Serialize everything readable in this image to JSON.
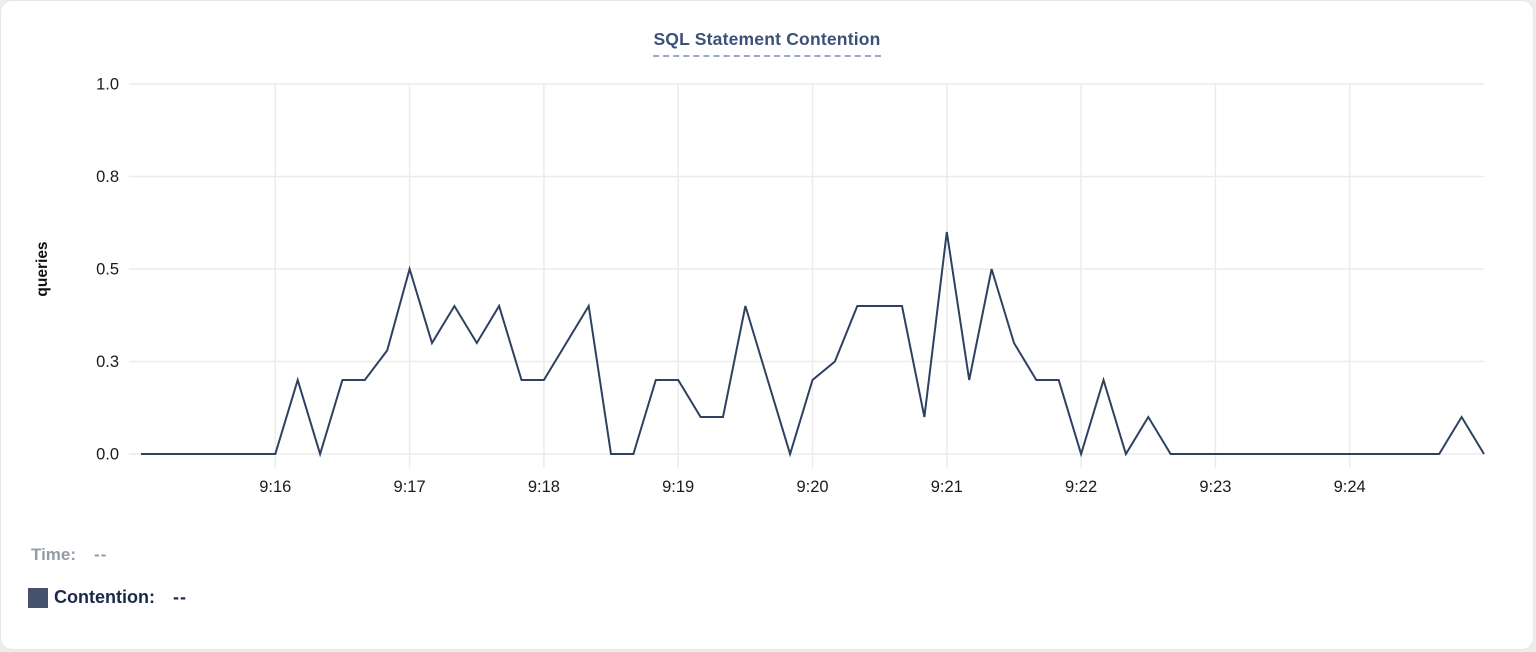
{
  "header": {
    "title": "SQL Statement Contention"
  },
  "tooltip_panel": {
    "time_label": "Time:",
    "time_value": "--",
    "series_label": "Contention:",
    "series_value": "--"
  },
  "colors": {
    "line": "#2e4161",
    "legend_swatch": "#46526b",
    "title": "#3c517a",
    "title_underline": "#9aa6d4",
    "grid": "#ececec",
    "axis_text": "#1b1b1b"
  },
  "chart_data": {
    "type": "line",
    "title": "SQL Statement Contention",
    "xlabel": "",
    "ylabel": "queries",
    "x_start_time": "9:15",
    "x_end_time": "9:25",
    "ylim": [
      0,
      1
    ],
    "grid": true,
    "legend_position": "bottom-left",
    "y_ticks": [
      {
        "v": 0.0,
        "label": "0.0"
      },
      {
        "v": 0.25,
        "label": "0.3"
      },
      {
        "v": 0.5,
        "label": "0.5"
      },
      {
        "v": 0.75,
        "label": "0.8"
      },
      {
        "v": 1.0,
        "label": "1.0"
      }
    ],
    "x_ticks": [
      {
        "t": 60,
        "label": "9:16"
      },
      {
        "t": 120,
        "label": "9:17"
      },
      {
        "t": 180,
        "label": "9:18"
      },
      {
        "t": 240,
        "label": "9:19"
      },
      {
        "t": 300,
        "label": "9:20"
      },
      {
        "t": 360,
        "label": "9:21"
      },
      {
        "t": 420,
        "label": "9:22"
      },
      {
        "t": 480,
        "label": "9:23"
      },
      {
        "t": 540,
        "label": "9:24"
      }
    ],
    "series": [
      {
        "name": "Contention",
        "unit": "queries",
        "color": "#2e4161",
        "sample_interval_seconds": 10,
        "t_seconds": [
          0,
          10,
          20,
          30,
          40,
          50,
          60,
          70,
          80,
          90,
          100,
          110,
          120,
          130,
          140,
          150,
          160,
          170,
          180,
          190,
          200,
          210,
          220,
          230,
          240,
          250,
          260,
          270,
          280,
          290,
          300,
          310,
          320,
          330,
          340,
          350,
          360,
          370,
          380,
          390,
          400,
          410,
          420,
          430,
          440,
          450,
          460,
          470,
          480,
          490,
          500,
          510,
          520,
          530,
          540,
          550,
          560,
          570,
          580,
          590,
          600
        ],
        "values": [
          0,
          0,
          0,
          0,
          0,
          0,
          0,
          0.2,
          0,
          0.2,
          0.2,
          0.28,
          0.5,
          0.3,
          0.4,
          0.3,
          0.4,
          0.2,
          0.2,
          0.3,
          0.4,
          0,
          0,
          0.2,
          0.2,
          0.1,
          0.1,
          0.4,
          0.2,
          0,
          0.2,
          0.25,
          0.4,
          0.4,
          0.4,
          0.1,
          0.6,
          0.2,
          0.5,
          0.3,
          0.2,
          0.2,
          0,
          0.2,
          0,
          0.1,
          0,
          0,
          0,
          0,
          0,
          0,
          0,
          0,
          0,
          0,
          0,
          0,
          0,
          0.1,
          0
        ]
      }
    ]
  }
}
